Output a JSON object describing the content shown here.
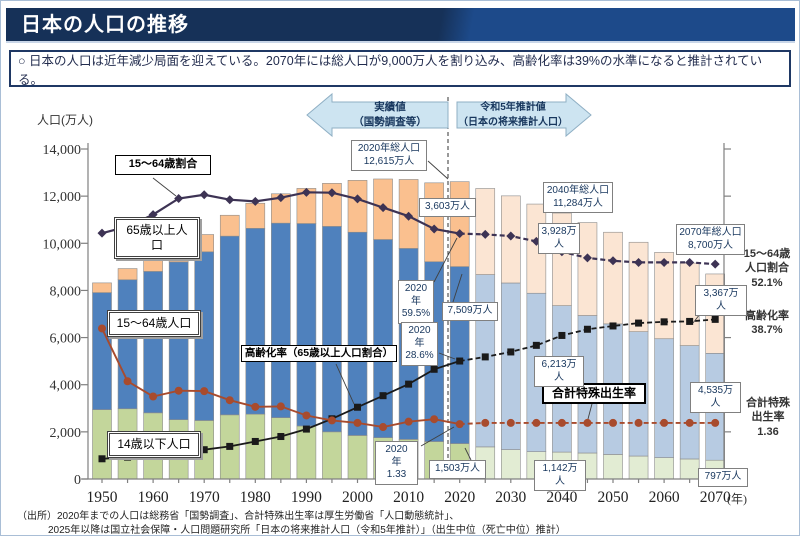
{
  "header": {
    "title": "日本の人口の推移"
  },
  "summary": {
    "text": "○ 日本の人口は近年減少局面を迎えている。2070年には総人口が9,000万人を割り込み、高齢化率は39%の水準になると推計されている。"
  },
  "period_arrows": {
    "actual": "実績値\n（国勢調査等）",
    "projection": "令和5年推計値\n（日本の将来推計人口）"
  },
  "axis": {
    "y_title": "人口(万人)",
    "x_suffix": "(年)"
  },
  "chart_data": {
    "type": "bar",
    "subtype": "stacked-bars-with-lines",
    "title": "日本の人口の推移",
    "ylabel": "人口(万人)",
    "ylim": [
      0,
      14000
    ],
    "yticks": [
      0,
      2000,
      4000,
      6000,
      8000,
      10000,
      12000,
      14000
    ],
    "x": [
      1950,
      1955,
      1960,
      1965,
      1970,
      1975,
      1980,
      1985,
      1990,
      1995,
      2000,
      2005,
      2010,
      2015,
      2020,
      2025,
      2030,
      2035,
      2040,
      2045,
      2050,
      2055,
      2060,
      2065,
      2070
    ],
    "x_suffix": "(年)",
    "actual_through_year": 2020,
    "legend_position": "in-chart callout boxes",
    "grid": false,
    "series": [
      {
        "name": "14歳以下人口",
        "type": "bar",
        "unit": "万人",
        "color": "#c3d69b",
        "color_projected": "#e2ecd3",
        "values": [
          2943,
          2980,
          2807,
          2517,
          2482,
          2722,
          2751,
          2603,
          2249,
          2001,
          1847,
          1752,
          1680,
          1589,
          1503,
          1362,
          1246,
          1159,
          1142,
          1103,
          1041,
          974,
          907,
          850,
          797
        ]
      },
      {
        "name": "15～64歳人口",
        "type": "bar",
        "unit": "万人",
        "color": "#4f81bd",
        "color_projected": "#b7cbe2",
        "values": [
          4966,
          5473,
          6000,
          6693,
          7157,
          7581,
          7883,
          8251,
          8590,
          8716,
          8622,
          8409,
          8103,
          7629,
          7509,
          7310,
          7070,
          6722,
          6213,
          5832,
          5540,
          5276,
          5044,
          4809,
          4535
        ]
      },
      {
        "name": "65歳以上人口",
        "type": "bar",
        "unit": "万人",
        "color": "#fac08f",
        "color_projected": "#fbe5d3",
        "values": [
          411,
          475,
          535,
          618,
          733,
          887,
          1065,
          1247,
          1489,
          1826,
          2201,
          2567,
          2925,
          3347,
          3603,
          3653,
          3696,
          3783,
          3928,
          3945,
          3888,
          3794,
          3664,
          3500,
          3367
        ]
      },
      {
        "name": "15～64歳割合",
        "type": "line",
        "unit": "%",
        "marker": "diamond",
        "color": "#3d3354",
        "values": [
          59.6,
          61.2,
          64.1,
          68.0,
          68.9,
          67.7,
          67.3,
          68.2,
          69.5,
          69.4,
          67.9,
          65.8,
          63.7,
          60.6,
          59.5,
          59.3,
          58.9,
          57.6,
          55.1,
          53.6,
          52.9,
          52.5,
          52.5,
          52.5,
          52.1
        ]
      },
      {
        "name": "高齢化率（65歳以上人口割合）",
        "type": "line",
        "unit": "%",
        "marker": "square",
        "color": "#1a1a1a",
        "values": [
          4.9,
          5.3,
          5.7,
          6.3,
          7.1,
          7.9,
          9.1,
          10.3,
          12.1,
          14.6,
          17.4,
          20.2,
          23.0,
          26.6,
          28.6,
          29.6,
          30.8,
          32.4,
          34.8,
          36.3,
          37.1,
          37.8,
          38.1,
          38.2,
          38.7
        ]
      },
      {
        "name": "合計特殊出生率",
        "type": "line",
        "unit": "",
        "marker": "circle",
        "color": "#a84b2d",
        "values": [
          3.65,
          2.37,
          2.0,
          2.14,
          2.13,
          1.91,
          1.75,
          1.76,
          1.54,
          1.42,
          1.36,
          1.26,
          1.39,
          1.45,
          1.33,
          1.36,
          1.36,
          1.36,
          1.36,
          1.36,
          1.36,
          1.36,
          1.36,
          1.36,
          1.36
        ]
      }
    ]
  },
  "annotations": {
    "label_ratio_1564": "15～64歳割合",
    "label_65plus": "65歳以上人\n口",
    "label_1564": "15～64歳人口",
    "label_under14": "14歳以下人口",
    "label_aging": "高齢化率（65歳以上人口割合）",
    "label_tfr": "合計特殊出生率",
    "total_2020": "2020年総人口\n12,615万人",
    "total_2040": "2040年総人口\n11,284万人",
    "total_2070": "2070年総人口\n8,700万人",
    "v3603": "3,603万人",
    "v3928": "3,928万\n人",
    "v3367": "3,367万\n人",
    "v7509": "7,509万人",
    "p595": "2020\n年\n59.5%",
    "p286": "2020\n年\n28.6%",
    "t133": "2020\n年\n1.33",
    "v1503": "1,503万人",
    "v6213": "6,213万\n人",
    "v4535": "4,535万\n人",
    "v1142": "1,142万\n人",
    "v797": "797万人"
  },
  "side_labels": {
    "ratio": "15～64歳\n人口割合\n52.1%",
    "aging": "高齢化率\n38.7%",
    "tfr": "合計特殊\n出生率\n1.36"
  },
  "source": {
    "line1": "（出所）2020年までの人口は総務省「国勢調査」、合計特殊出生率は厚生労働省「人口動態統計」、",
    "line2": "2025年以降は国立社会保障・人口問題研究所「日本の将来推計人口（令和5年推計）」（出生中位（死亡中位）推計）"
  }
}
